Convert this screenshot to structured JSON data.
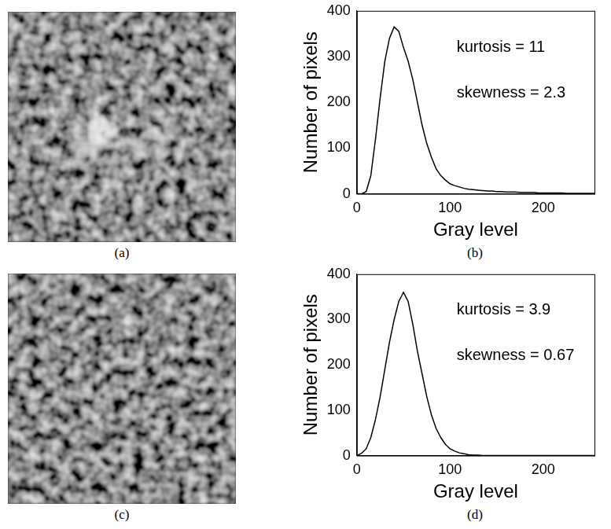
{
  "figure": {
    "images": [
      {
        "label": "(a)"
      },
      {
        "label": "(c)"
      }
    ]
  },
  "chart_data": [
    {
      "type": "line",
      "caption": "(b)",
      "x_label": "Gray level",
      "y_label": "Number of pixels",
      "annotations": [
        "kurtosis = 11",
        "skewness = 2.3"
      ],
      "x": [
        0,
        5,
        10,
        15,
        20,
        25,
        30,
        35,
        40,
        45,
        50,
        55,
        60,
        65,
        70,
        75,
        80,
        85,
        90,
        95,
        100,
        105,
        110,
        115,
        120,
        125,
        130,
        135,
        140,
        145,
        150,
        155,
        160,
        165,
        170,
        175,
        180,
        185,
        190,
        195,
        200,
        205,
        210,
        215,
        220,
        225,
        230,
        235,
        240,
        245,
        250,
        255
      ],
      "values": [
        0,
        0,
        5,
        40,
        120,
        210,
        290,
        340,
        365,
        355,
        320,
        290,
        250,
        200,
        150,
        110,
        80,
        55,
        40,
        30,
        22,
        18,
        15,
        12,
        10,
        9,
        8,
        7,
        6,
        6,
        5,
        5,
        4,
        4,
        4,
        3,
        3,
        3,
        3,
        2,
        2,
        2,
        2,
        2,
        2,
        1,
        1,
        1,
        1,
        1,
        1,
        1
      ],
      "color": "#000000",
      "xlim": [
        0,
        255
      ],
      "xticks": [
        0,
        100,
        200
      ],
      "ylim": [
        0,
        400
      ],
      "yticks": [
        0,
        100,
        200,
        300,
        400
      ],
      "grid": false
    },
    {
      "type": "line",
      "caption": "(d)",
      "x_label": "Gray level",
      "y_label": "Number of pixels",
      "annotations": [
        "kurtosis = 3.9",
        "skewness = 0.67"
      ],
      "x": [
        0,
        5,
        10,
        15,
        20,
        25,
        30,
        35,
        40,
        45,
        50,
        55,
        60,
        65,
        70,
        75,
        80,
        85,
        90,
        95,
        100,
        105,
        110,
        115,
        120,
        125,
        130,
        135,
        140,
        145,
        150,
        155,
        160,
        165,
        170,
        175,
        180,
        185,
        190,
        195,
        200,
        205,
        210,
        215,
        220,
        225,
        230,
        235,
        240,
        245,
        250,
        255
      ],
      "values": [
        0,
        5,
        15,
        40,
        80,
        130,
        190,
        250,
        300,
        340,
        360,
        340,
        290,
        230,
        180,
        130,
        90,
        60,
        40,
        25,
        15,
        10,
        6,
        4,
        2,
        1,
        1,
        0,
        0,
        0,
        0,
        0,
        0,
        0,
        0,
        0,
        0,
        0,
        0,
        0,
        0,
        0,
        0,
        0,
        0,
        0,
        0,
        0,
        0,
        0,
        0,
        0
      ],
      "color": "#000000",
      "xlim": [
        0,
        255
      ],
      "xticks": [
        0,
        100,
        200
      ],
      "ylim": [
        0,
        400
      ],
      "yticks": [
        0,
        100,
        200,
        300,
        400
      ],
      "grid": false
    }
  ]
}
